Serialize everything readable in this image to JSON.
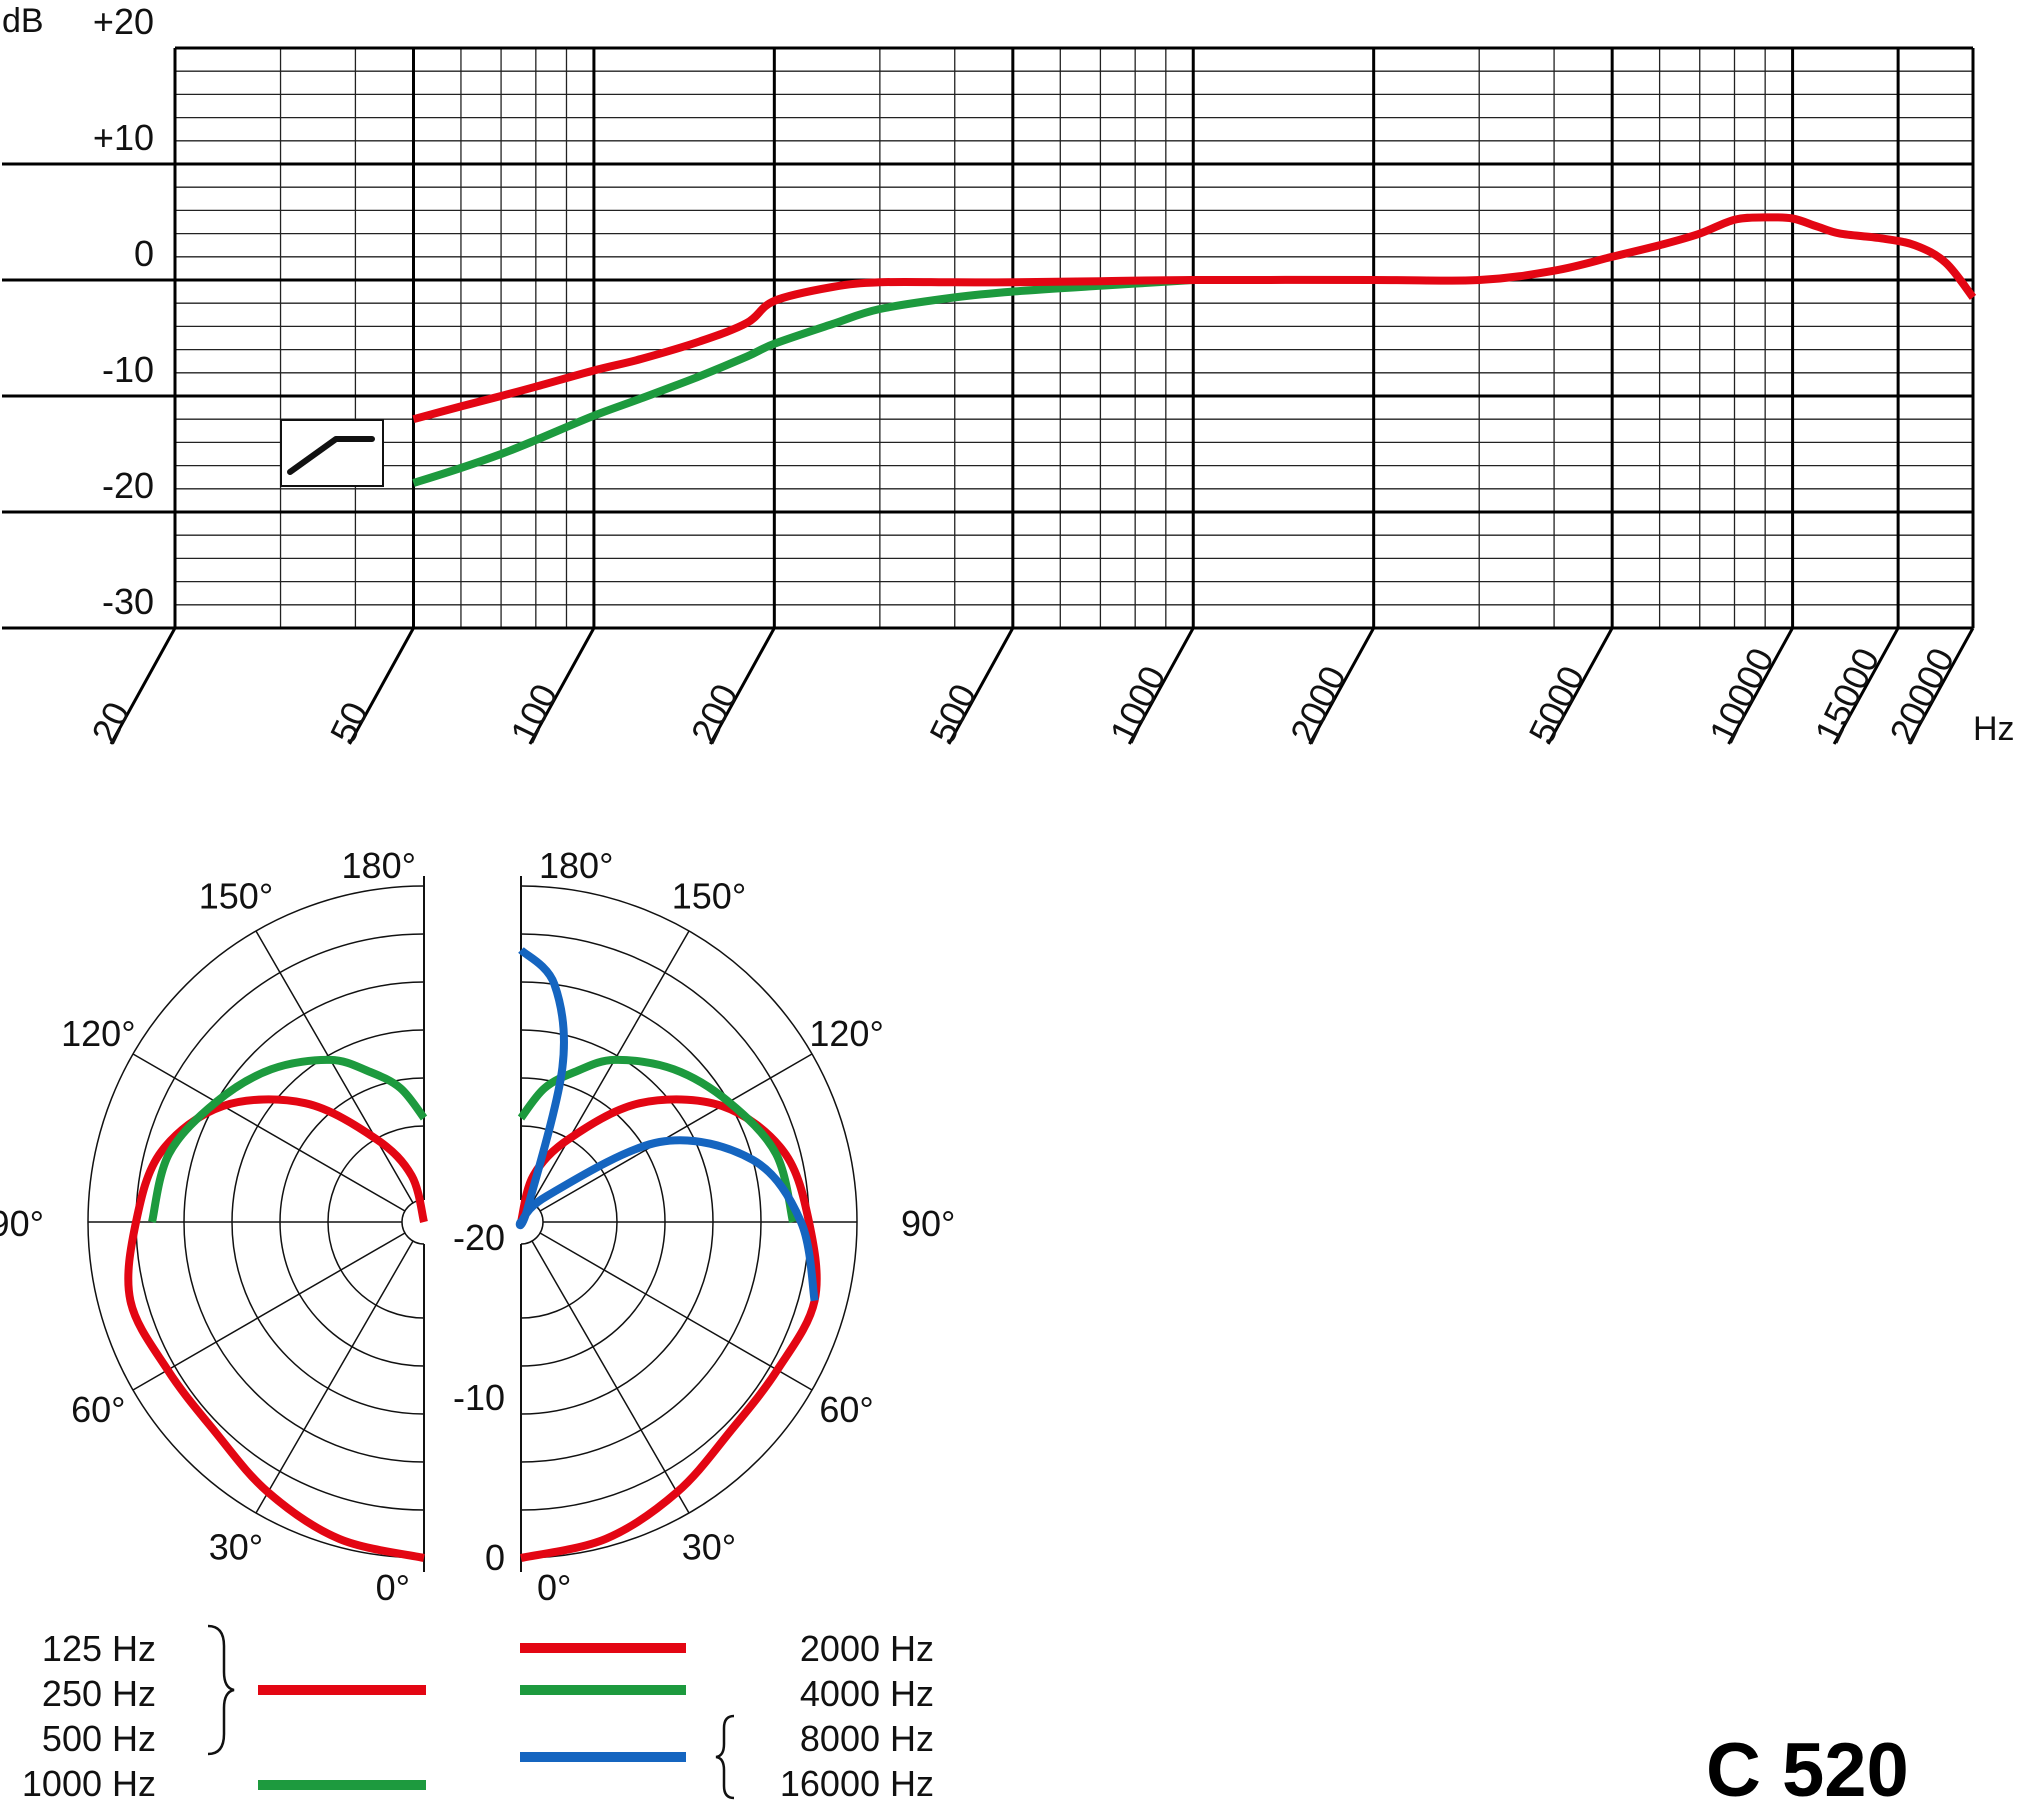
{
  "chart_data": [
    {
      "type": "line",
      "title": "",
      "ylabel": "dB",
      "xlabel": "Hz",
      "xscale": "log",
      "xlim": [
        20,
        20000
      ],
      "ylim": [
        -30,
        20
      ],
      "grid": true,
      "ytick_labels": [
        "+20",
        "+10",
        "0",
        "-10",
        "-20",
        "-30"
      ],
      "ytick_values": [
        20,
        10,
        0,
        -10,
        -20,
        -30
      ],
      "xtick_labels": [
        "20",
        "50",
        "100",
        "200",
        "500",
        "1000",
        "2000",
        "5000",
        "10000",
        "15000",
        "20000"
      ],
      "xtick_values": [
        20,
        50,
        100,
        200,
        500,
        1000,
        2000,
        5000,
        10000,
        15000,
        20000
      ],
      "series": [
        {
          "color": "#e30613",
          "points": [
            [
              50,
              -12
            ],
            [
              60,
              -10.9
            ],
            [
              70,
              -10
            ],
            [
              80,
              -9.2
            ],
            [
              100,
              -7.8
            ],
            [
              120,
              -6.8
            ],
            [
              150,
              -5.3
            ],
            [
              180,
              -3.7
            ],
            [
              200,
              -1.8
            ],
            [
              250,
              -0.6
            ],
            [
              300,
              -0.2
            ],
            [
              400,
              -0.2
            ],
            [
              500,
              -0.2
            ],
            [
              700,
              -0.1
            ],
            [
              1000,
              0
            ],
            [
              2000,
              0
            ],
            [
              3000,
              0
            ],
            [
              4000,
              0.8
            ],
            [
              5000,
              2
            ],
            [
              6000,
              3
            ],
            [
              7000,
              4
            ],
            [
              8000,
              5.2
            ],
            [
              9000,
              5.4
            ],
            [
              10000,
              5.3
            ],
            [
              11000,
              4.6
            ],
            [
              12000,
              4
            ],
            [
              14000,
              3.6
            ],
            [
              16000,
              3
            ],
            [
              18000,
              1.5
            ],
            [
              20000,
              -1.5
            ]
          ]
        },
        {
          "color": "#1d9a3e",
          "points": [
            [
              50,
              -17.5
            ],
            [
              60,
              -16.2
            ],
            [
              70,
              -15
            ],
            [
              80,
              -13.8
            ],
            [
              100,
              -11.7
            ],
            [
              120,
              -10.2
            ],
            [
              150,
              -8.3
            ],
            [
              180,
              -6.6
            ],
            [
              200,
              -5.5
            ],
            [
              250,
              -3.8
            ],
            [
              300,
              -2.5
            ],
            [
              400,
              -1.5
            ],
            [
              500,
              -1
            ],
            [
              700,
              -0.5
            ],
            [
              1000,
              0
            ]
          ]
        }
      ]
    },
    {
      "type": "polar",
      "title": "",
      "angle_labels_left": [
        "180°",
        "150°",
        "120°",
        "90°",
        "60°",
        "30°",
        "0°"
      ],
      "angle_labels_right": [
        "180°",
        "150°",
        "120°",
        "90°",
        "60°",
        "30°",
        "0°"
      ],
      "radial_labels": [
        "-20",
        "-10",
        "0"
      ],
      "series": [
        {
          "name": "125 Hz / 250 Hz / 500 Hz",
          "color": "#e30613",
          "side": "left",
          "points": [
            [
              0,
              0
            ],
            [
              15,
              -0.5
            ],
            [
              30,
              -1.5
            ],
            [
              45,
              -2.5
            ],
            [
              60,
              -2.5
            ],
            [
              75,
              -2
            ],
            [
              90,
              -3
            ],
            [
              105,
              -4
            ],
            [
              120,
              -6.5
            ],
            [
              135,
              -10.5
            ],
            [
              150,
              -15
            ],
            [
              165,
              -18
            ],
            [
              180,
              -21
            ]
          ]
        },
        {
          "name": "1000 Hz",
          "color": "#1d9a3e",
          "side": "left",
          "points": [
            [
              90,
              -4
            ],
            [
              105,
              -4.5
            ],
            [
              120,
              -6
            ],
            [
              135,
              -7.5
            ],
            [
              150,
              -9.3
            ],
            [
              160,
              -11
            ],
            [
              170,
              -12.5
            ],
            [
              180,
              -14.5
            ]
          ]
        },
        {
          "name": "2000 Hz",
          "color": "#e30613",
          "side": "right",
          "points": [
            [
              0,
              0
            ],
            [
              15,
              -0.5
            ],
            [
              30,
              -1.5
            ],
            [
              45,
              -2.5
            ],
            [
              60,
              -2.5
            ],
            [
              75,
              -2
            ],
            [
              90,
              -3
            ],
            [
              105,
              -4
            ],
            [
              120,
              -6.5
            ],
            [
              135,
              -10.5
            ],
            [
              150,
              -15
            ],
            [
              165,
              -18
            ],
            [
              180,
              -21
            ]
          ]
        },
        {
          "name": "4000 Hz",
          "color": "#1d9a3e",
          "side": "right",
          "points": [
            [
              90,
              -4
            ],
            [
              105,
              -4.5
            ],
            [
              120,
              -6
            ],
            [
              135,
              -7.5
            ],
            [
              150,
              -9.3
            ],
            [
              160,
              -11
            ],
            [
              170,
              -12.5
            ],
            [
              180,
              -14.5
            ]
          ]
        },
        {
          "name": "8000 Hz / 16000 Hz",
          "color": "#1565c0",
          "side": "right",
          "points": [
            [
              75,
              -2
            ],
            [
              90,
              -3.5
            ],
            [
              105,
              -6
            ],
            [
              120,
              -11
            ],
            [
              135,
              -18.7
            ],
            [
              145,
              -22
            ],
            [
              155,
              -20
            ],
            [
              165,
              -11
            ],
            [
              172,
              -6
            ],
            [
              180,
              -4
            ]
          ]
        }
      ]
    }
  ],
  "legend": {
    "left_labels": [
      "125 Hz",
      "250 Hz",
      "500 Hz",
      "1000 Hz"
    ],
    "right_labels": [
      "2000 Hz",
      "4000 Hz",
      "8000 Hz",
      "16000 Hz"
    ]
  },
  "model": "C 520",
  "colors": {
    "red": "#e30613",
    "green": "#1d9a3e",
    "blue": "#1565c0"
  }
}
